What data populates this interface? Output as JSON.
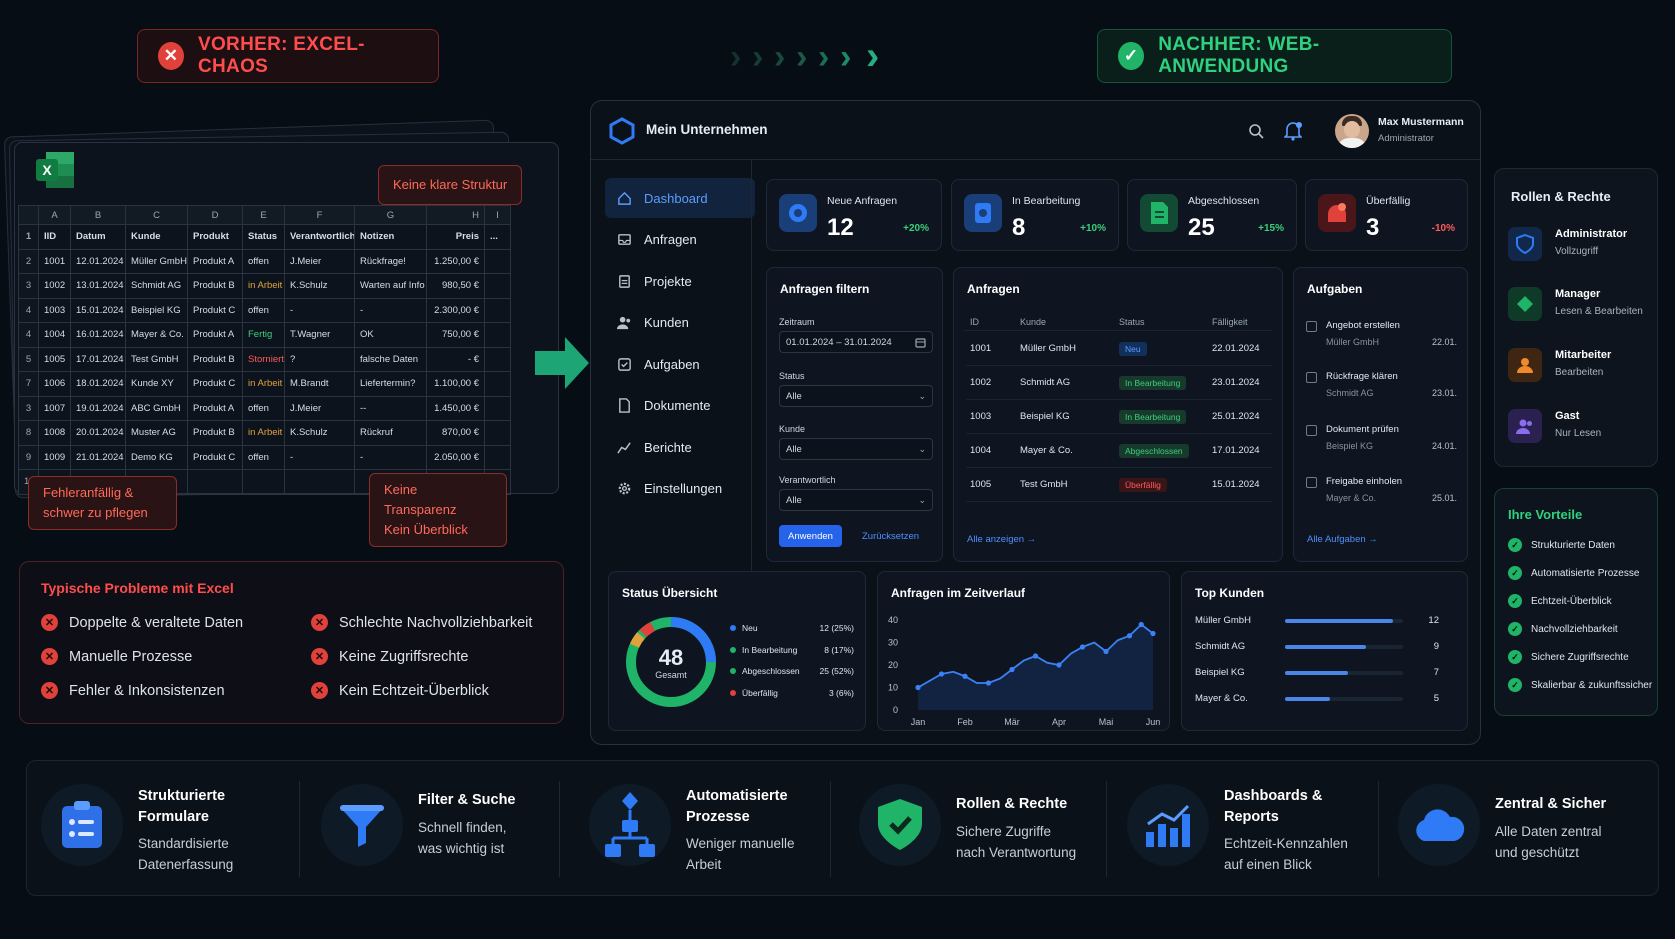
{
  "header": {
    "before_label": "VORHER: EXCEL-CHAOS",
    "after_label": "NACHHER: WEB-ANWENDUNG"
  },
  "excel": {
    "col_headers": [
      "",
      "A",
      "B",
      "C",
      "D",
      "E",
      "F",
      "G",
      "H",
      "I"
    ],
    "header_row": [
      "1",
      "IID",
      "Datum",
      "Kunde",
      "Produkt",
      "Status",
      "Verantwortlich",
      "Notizen",
      "Preis",
      "..."
    ],
    "rows": [
      [
        "2",
        "1001",
        "12.01.2024",
        "Müller GmbH",
        "Produkt A",
        "offen",
        "J.Meier",
        "Rückfrage!",
        "1.250,00 €",
        ""
      ],
      [
        "3",
        "1002",
        "13.01.2024",
        "Schmidt AG",
        "Produkt B",
        "in Arbeit",
        "K.Schulz",
        "Warten auf Info",
        "980,50 €",
        ""
      ],
      [
        "4",
        "1003",
        "15.01.2024",
        "Beispiel KG",
        "Produkt C",
        "offen",
        "-",
        "-",
        "2.300,00 €",
        ""
      ],
      [
        "4",
        "1004",
        "16.01.2024",
        "Mayer & Co.",
        "Produkt A",
        "Fertig",
        "T.Wagner",
        "OK",
        "750,00 €",
        ""
      ],
      [
        "5",
        "1005",
        "17.01.2024",
        "Test GmbH",
        "Produkt B",
        "Storniert",
        "?",
        "falsche Daten",
        "- €",
        ""
      ],
      [
        "7",
        "1006",
        "18.01.2024",
        "Kunde XY",
        "Produkt C",
        "in Arbeit",
        "M.Brandt",
        "Liefertermin?",
        "1.100,00 €",
        ""
      ],
      [
        "3",
        "1007",
        "19.01.2024",
        "ABC GmbH",
        "Produkt A",
        "offen",
        "J.Meier",
        "--",
        "1.450,00 €",
        ""
      ],
      [
        "8",
        "1008",
        "20.01.2024",
        "Muster AG",
        "Produkt B",
        "in Arbeit",
        "K.Schulz",
        "Rückruf",
        "870,00 €",
        ""
      ],
      [
        "9",
        "1009",
        "21.01.2024",
        "Demo KG",
        "Produkt C",
        "offen",
        "-",
        "-",
        "2.050,00 €",
        ""
      ],
      [
        "10",
        "",
        "",
        "",
        "",
        "",
        "",
        "",
        "",
        ""
      ]
    ],
    "callouts": {
      "structure": "Keine klare Struktur",
      "error1": "Fehleranfällig &",
      "error2": "schwer zu pflegen",
      "transp1": "Keine Transparenz",
      "transp2": "Kein Überblick"
    }
  },
  "problems": {
    "title": "Typische Probleme mit Excel",
    "items": [
      "Doppelte & veraltete Daten",
      "Manuelle Prozesse",
      "Fehler & Inkonsistenzen",
      "Schlechte Nachvollziehbarkeit",
      "Keine Zugriffsrechte",
      "Kein Echtzeit-Überblick"
    ]
  },
  "dash": {
    "company": "Mein Unternehmen",
    "user_name": "Max Mustermann",
    "user_role": "Administrator",
    "nav": [
      "Dashboard",
      "Anfragen",
      "Projekte",
      "Kunden",
      "Aufgaben",
      "Dokumente",
      "Berichte",
      "Einstellungen"
    ],
    "stats": [
      {
        "label": "Neue Anfragen",
        "value": "12",
        "change": "+20%",
        "color": "#2f7bf6"
      },
      {
        "label": "In Bearbeitung",
        "value": "8",
        "change": "+10%",
        "color": "#2f7bf6"
      },
      {
        "label": "Abgeschlossen",
        "value": "25",
        "change": "+15%",
        "color": "#1fb467"
      },
      {
        "label": "Überfällig",
        "value": "3",
        "change": "-10%",
        "color": "#e0413a"
      }
    ],
    "filter": {
      "title": "Anfragen filtern",
      "zeitraum_label": "Zeitraum",
      "date_from": "01.01.2024",
      "date_sep": "–",
      "date_to": "31.01.2024",
      "status_label": "Status",
      "status_value": "Alle",
      "kunde_label": "Kunde",
      "kunde_value": "Alle",
      "verant_label": "Verantwortlich",
      "verant_value": "Alle",
      "apply": "Anwenden",
      "reset": "Zurücksetzen"
    },
    "requests": {
      "title": "Anfragen",
      "cols": [
        "ID",
        "Kunde",
        "Status",
        "Fälligkeit"
      ],
      "rows": [
        {
          "id": "1001",
          "kunde": "Müller GmbH",
          "status": "Neu",
          "due": "22.01.2024"
        },
        {
          "id": "1002",
          "kunde": "Schmidt AG",
          "status": "In Bearbeitung",
          "due": "23.01.2024"
        },
        {
          "id": "1003",
          "kunde": "Beispiel KG",
          "status": "In Bearbeitung",
          "due": "25.01.2024"
        },
        {
          "id": "1004",
          "kunde": "Mayer & Co.",
          "status": "Abgeschlossen",
          "due": "17.01.2024"
        },
        {
          "id": "1005",
          "kunde": "Test GmbH",
          "status": "Überfällig",
          "due": "15.01.2024"
        }
      ],
      "show_all": "Alle anzeigen →"
    },
    "tasks": {
      "title": "Aufgaben",
      "items": [
        {
          "title": "Angebot erstellen",
          "sub": "Müller GmbH",
          "date": "22.01."
        },
        {
          "title": "Rückfrage klären",
          "sub": "Schmidt AG",
          "date": "23.01."
        },
        {
          "title": "Dokument prüfen",
          "sub": "Beispiel KG",
          "date": "24.01."
        },
        {
          "title": "Freigabe einholen",
          "sub": "Mayer & Co.",
          "date": "25.01."
        }
      ],
      "show_all": "Alle Aufgaben →"
    },
    "status_overview": {
      "title": "Status Übersicht",
      "total": "48",
      "total_label": "Gesamt",
      "legend": [
        {
          "name": "Neu",
          "value": "12 (25%)",
          "color": "#2f7bf6"
        },
        {
          "name": "In Bearbeitung",
          "value": "8 (17%)",
          "color": "#1fb467"
        },
        {
          "name": "Abgeschlossen",
          "value": "25 (52%)",
          "color": "#1fb467"
        },
        {
          "name": "Überfällig",
          "value": "3 (6%)",
          "color": "#e0413a"
        }
      ]
    },
    "timeline": {
      "title": "Anfragen im Zeitverlauf"
    },
    "top": {
      "title": "Top Kunden",
      "items": [
        {
          "name": "Müller GmbH",
          "value": "12",
          "frac": 1
        },
        {
          "name": "Schmidt AG",
          "value": "9",
          "frac": 0.75
        },
        {
          "name": "Beispiel KG",
          "value": "7",
          "frac": 0.58
        },
        {
          "name": "Mayer & Co.",
          "value": "5",
          "frac": 0.42
        }
      ]
    }
  },
  "chart_data": {
    "type": "line",
    "title": "Anfragen im Zeitverlauf",
    "categories": [
      "Jan",
      "Feb",
      "Mär",
      "Apr",
      "Mai",
      "Jun"
    ],
    "x": [
      0,
      0.5,
      1,
      1.5,
      2,
      2.5,
      3,
      3.5,
      4,
      4.5,
      5,
      5.5,
      6,
      6.5,
      7,
      7.5,
      8,
      8.5,
      9,
      9.5,
      10
    ],
    "values": [
      10,
      13,
      16,
      17,
      15,
      12,
      12,
      14,
      18,
      22,
      24,
      21,
      20,
      25,
      28,
      30,
      26,
      31,
      33,
      38,
      34
    ],
    "ylim": [
      0,
      40
    ],
    "yticks": [
      0,
      10,
      20,
      30,
      40
    ],
    "grid": false
  },
  "roles": {
    "title": "Rollen & Rechte",
    "items": [
      {
        "name": "Administrator",
        "desc": "Vollzugriff",
        "color": "#2f7bf6"
      },
      {
        "name": "Manager",
        "desc": "Lesen & Bearbeiten",
        "color": "#1fb467"
      },
      {
        "name": "Mitarbeiter",
        "desc": "Bearbeiten",
        "color": "#f08a2c"
      },
      {
        "name": "Gast",
        "desc": "Nur Lesen",
        "color": "#8a6cf0"
      }
    ]
  },
  "advantages": {
    "title": "Ihre Vorteile",
    "items": [
      "Strukturierte Daten",
      "Automatisierte Prozesse",
      "Echtzeit-Überblick",
      "Nachvollziehbarkeit",
      "Sichere Zugriffsrechte",
      "Skalierbar & zukunftssicher"
    ]
  },
  "features": [
    {
      "t1": "Strukturierte",
      "t2": "Formulare",
      "d1": "Standardisierte",
      "d2": "Datenerfassung",
      "icon": "form-icon"
    },
    {
      "t1": "Filter & Suche",
      "t2": "",
      "d1": "Schnell finden,",
      "d2": "was wichtig ist",
      "icon": "funnel-icon"
    },
    {
      "t1": "Automatisierte",
      "t2": "Prozesse",
      "d1": "Weniger manuelle",
      "d2": "Arbeit",
      "icon": "workflow-icon"
    },
    {
      "t1": "Rollen & Rechte",
      "t2": "",
      "d1": "Sichere Zugriffe",
      "d2": "nach Verantwortung",
      "icon": "shield-icon"
    },
    {
      "t1": "Dashboards &",
      "t2": "Reports",
      "d1": "Echtzeit-Kennzahlen",
      "d2": "auf einen Blick",
      "icon": "bar-chart-icon"
    },
    {
      "t1": "Zentral & Sicher",
      "t2": "",
      "d1": "Alle Daten zentral",
      "d2": "und geschützt",
      "icon": "cloud-icon"
    }
  ]
}
